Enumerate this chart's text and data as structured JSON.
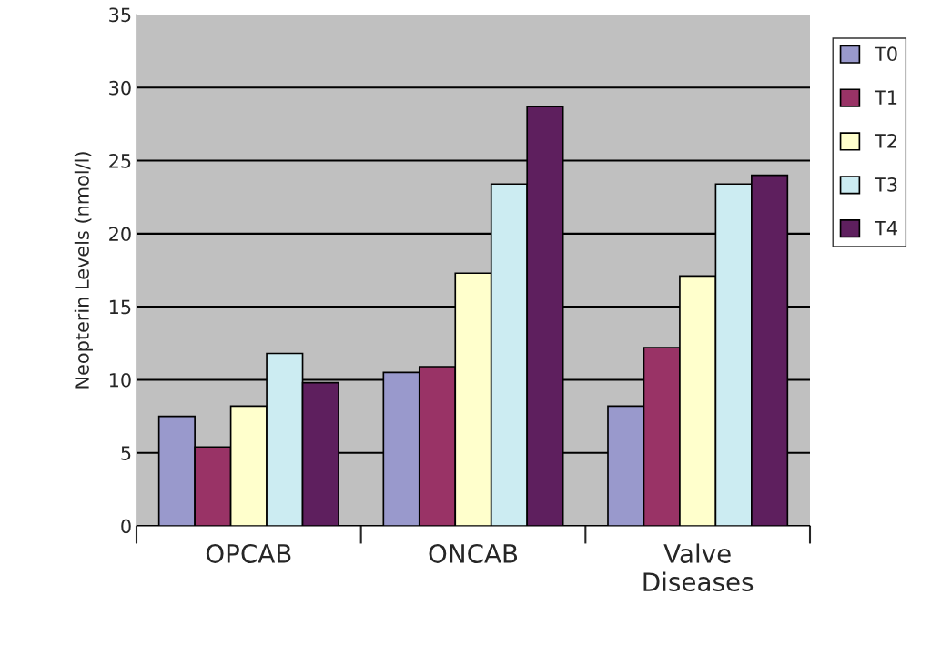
{
  "chart_data": {
    "type": "bar",
    "ylabel": "Neopterin Levels (nmol/l)",
    "categories": [
      "OPCAB",
      "ONCAB",
      "Valve\nDiseases"
    ],
    "series": [
      {
        "name": "T0",
        "color": "#9999cc",
        "values": [
          7.5,
          10.5,
          8.2
        ]
      },
      {
        "name": "T1",
        "color": "#993366",
        "values": [
          5.4,
          10.9,
          12.2
        ]
      },
      {
        "name": "T2",
        "color": "#ffffcc",
        "values": [
          8.2,
          17.3,
          17.1
        ]
      },
      {
        "name": "T3",
        "color": "#ccecf2",
        "values": [
          11.8,
          23.4,
          23.4
        ]
      },
      {
        "name": "T4",
        "color": "#5e1f5e",
        "values": [
          9.8,
          28.7,
          24.0
        ]
      }
    ],
    "ylim": [
      0,
      35
    ],
    "yticks": [
      0,
      5,
      10,
      15,
      20,
      25,
      30,
      35
    ],
    "grid": "y",
    "legend": "right"
  }
}
